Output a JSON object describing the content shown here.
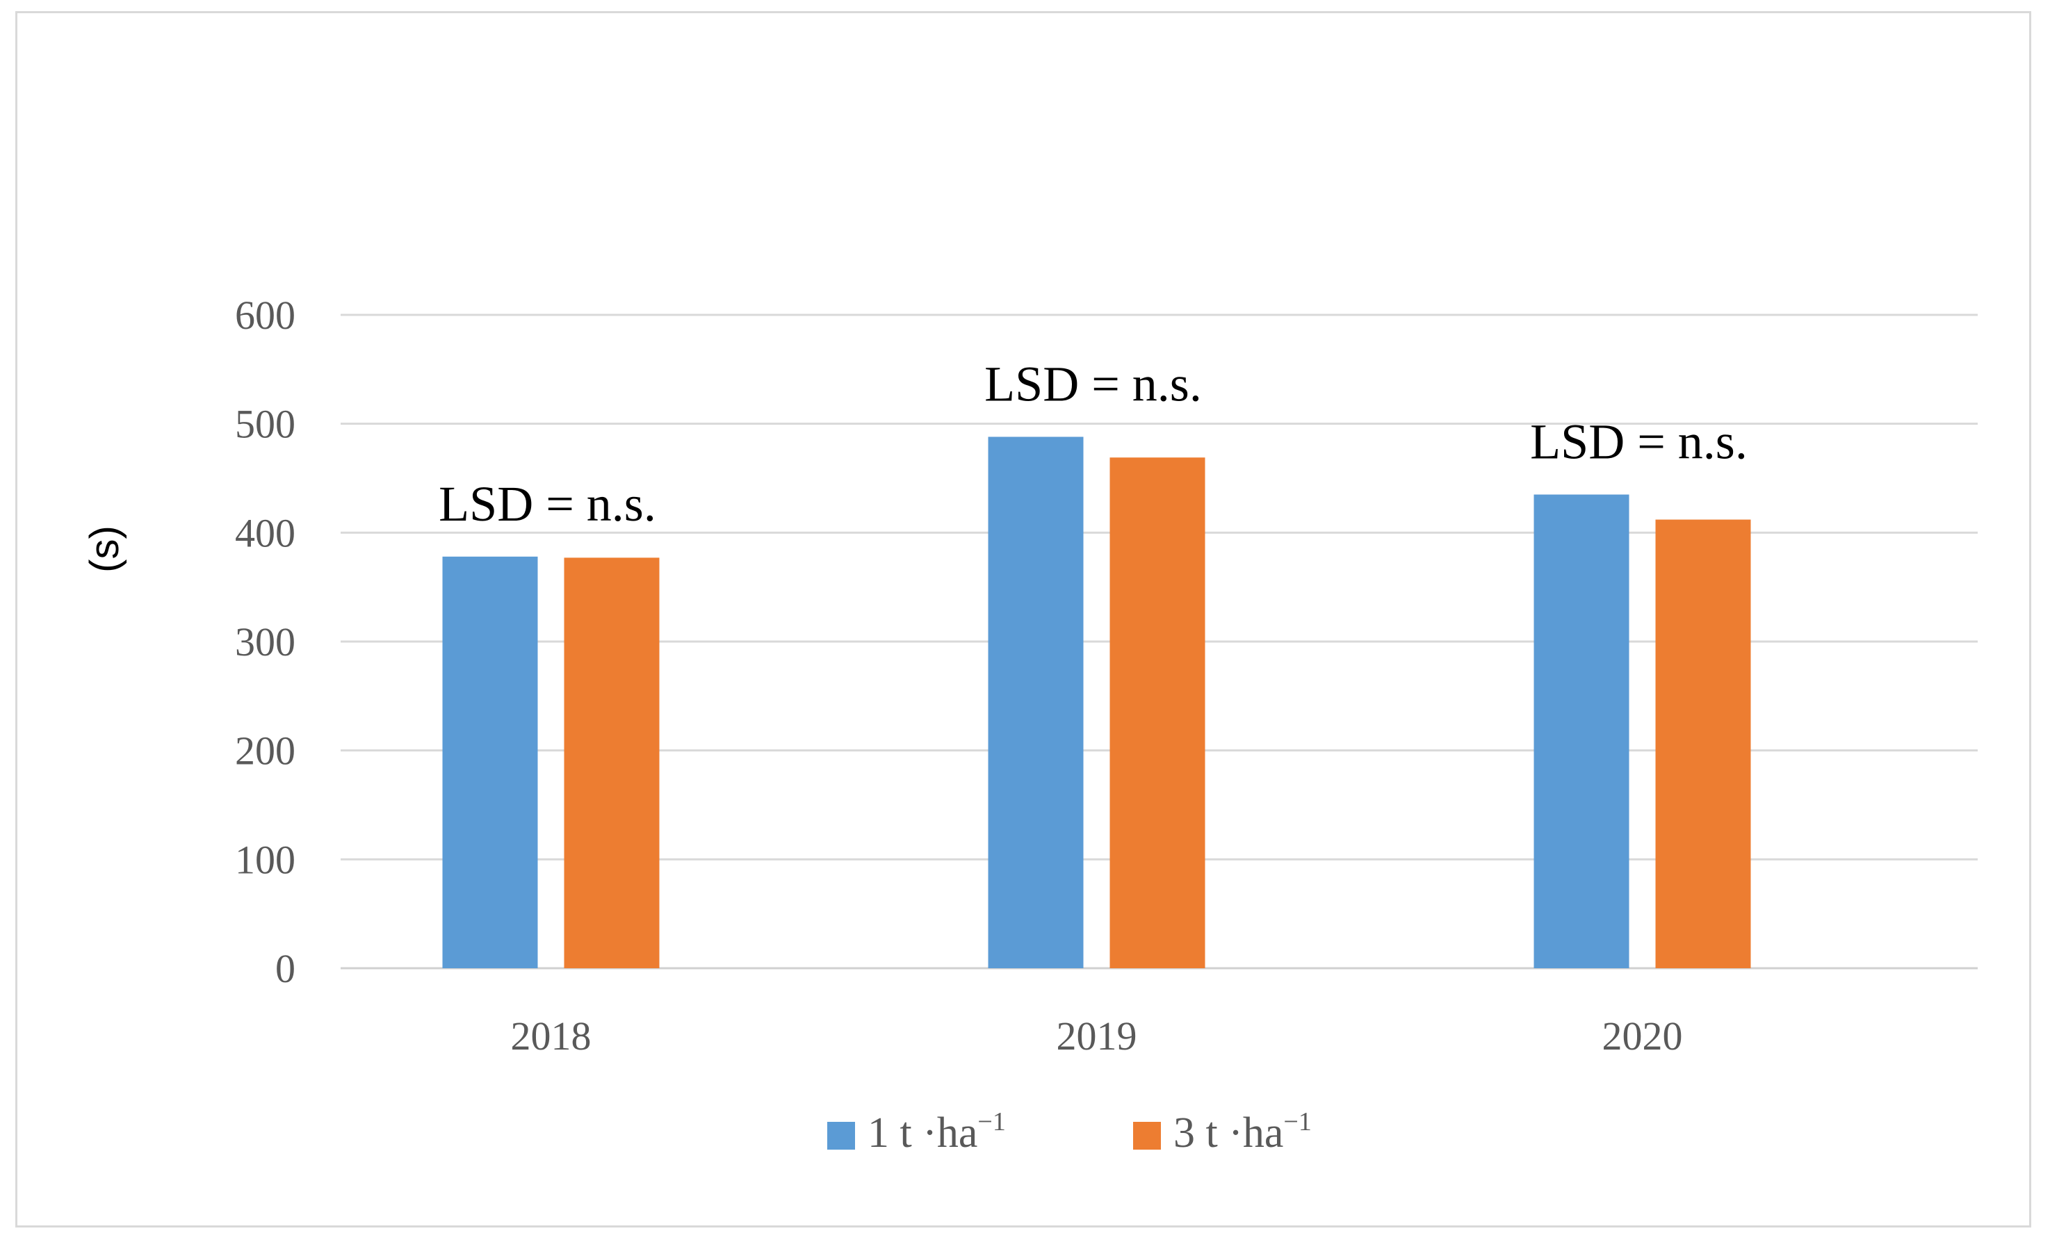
{
  "chart_data": {
    "type": "bar",
    "title": "",
    "xlabel": "",
    "ylabel": "(s)",
    "ylim": [
      0,
      600
    ],
    "yticks": [
      0,
      100,
      200,
      300,
      400,
      500,
      600
    ],
    "grid": true,
    "categories": [
      "2018",
      "2019",
      "2020"
    ],
    "series": [
      {
        "name": "1 t ·ha",
        "superscript": "−1",
        "color": "#5b9bd5",
        "values": [
          378,
          488,
          435
        ]
      },
      {
        "name": "3 t ·ha",
        "superscript": "−1",
        "color": "#ed7d31",
        "values": [
          377,
          469,
          412
        ]
      }
    ],
    "annotations": [
      "LSD = n.s.",
      "LSD = n.s.",
      "LSD = n.s."
    ],
    "legend_position": "bottom-center"
  }
}
